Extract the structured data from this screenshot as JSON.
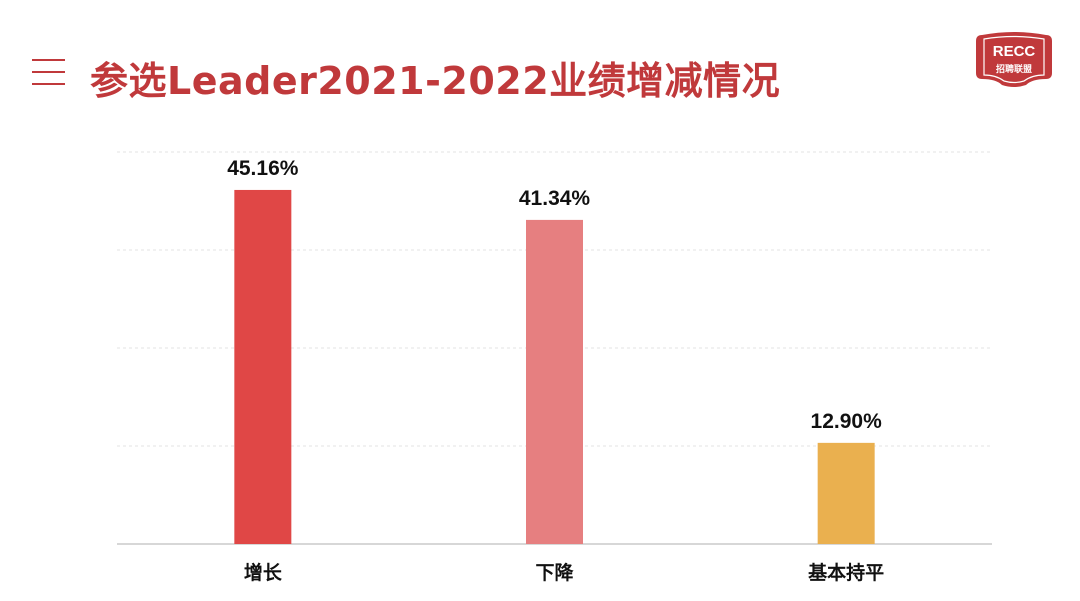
{
  "header": {
    "title": "参选Leader2021-2022业绩增减情况",
    "menu_icon": "menu-icon"
  },
  "logo": {
    "line1": "RECC",
    "line2": "招聘联盟",
    "color": "#c0393b"
  },
  "colors": {
    "title": "#c0393b",
    "gridline": "#e3e3e3",
    "axis": "#bfbfbf"
  },
  "chart_data": {
    "type": "bar",
    "categories": [
      "增长",
      "下降",
      "基本持平"
    ],
    "values": [
      45.16,
      41.34,
      12.9
    ],
    "data_labels": [
      "45.16%",
      "41.34%",
      "12.90%"
    ],
    "colors": [
      "#e04746",
      "#e67f80",
      "#eab04f"
    ],
    "title": "",
    "xlabel": "",
    "ylabel": "",
    "ylim": [
      0,
      50
    ],
    "y_axis_visible": false,
    "grid": true,
    "legend": "none"
  }
}
